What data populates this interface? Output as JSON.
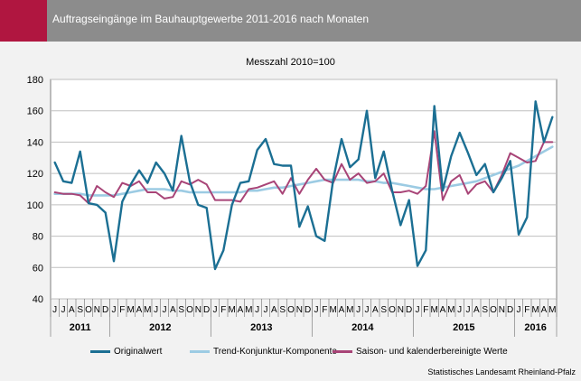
{
  "header": {
    "title": "Auftragseingänge im Bauhauptgewerbe 2011-2016 nach Monaten",
    "accent_color": "#b01640",
    "bar_color": "#8c8c8c"
  },
  "source": "Statistisches Landesamt Rheinland-Pfalz",
  "chart_data": {
    "type": "line",
    "title": "",
    "subtitle": "Messzahl 2010=100",
    "xlabel": "",
    "ylabel": "",
    "ylim": [
      40,
      180
    ],
    "yticks": [
      40,
      60,
      80,
      100,
      120,
      140,
      160,
      180
    ],
    "grid": true,
    "legend_position": "bottom",
    "month_labels": [
      "J",
      "J",
      "A",
      "S",
      "O",
      "N",
      "D",
      "J",
      "F",
      "M",
      "A",
      "M",
      "J",
      "J",
      "A",
      "S",
      "O",
      "N",
      "D",
      "J",
      "F",
      "M",
      "A",
      "M",
      "J",
      "J",
      "A",
      "S",
      "O",
      "N",
      "D",
      "J",
      "F",
      "M",
      "A",
      "M",
      "J",
      "J",
      "A",
      "S",
      "O",
      "N",
      "D",
      "J",
      "F",
      "M",
      "A",
      "M",
      "J",
      "J",
      "A",
      "S",
      "O",
      "N",
      "D",
      "J",
      "F",
      "M",
      "A",
      "M"
    ],
    "years": [
      {
        "label": "2011",
        "months": 7
      },
      {
        "label": "2012",
        "months": 12
      },
      {
        "label": "2013",
        "months": 12
      },
      {
        "label": "2014",
        "months": 12
      },
      {
        "label": "2015",
        "months": 12
      },
      {
        "label": "2016",
        "months": 5
      }
    ],
    "series": [
      {
        "name": "Originalwert",
        "color": "#1b6f93",
        "values": [
          127,
          115,
          114,
          134,
          101,
          100,
          95,
          64,
          102,
          113,
          122,
          114,
          127,
          120,
          109,
          144,
          115,
          100,
          98,
          59,
          71,
          100,
          114,
          115,
          135,
          142,
          126,
          125,
          125,
          86,
          99,
          80,
          77,
          116,
          142,
          124,
          129,
          160,
          117,
          134,
          109,
          87,
          103,
          61,
          71,
          163,
          109,
          131,
          146,
          133,
          119,
          126,
          108,
          117,
          128,
          81,
          92,
          166,
          140,
          156
        ]
      },
      {
        "name": "Trend-Konjunktur-Komponente",
        "color": "#9ccbe3",
        "values": [
          107,
          107,
          107,
          107,
          106,
          106,
          106,
          106,
          107,
          108,
          109,
          110,
          110,
          110,
          109,
          109,
          108,
          108,
          108,
          108,
          108,
          108,
          108,
          109,
          109,
          110,
          111,
          111,
          112,
          113,
          114,
          115,
          116,
          116,
          116,
          116,
          116,
          115,
          115,
          114,
          114,
          113,
          112,
          111,
          110,
          110,
          111,
          112,
          113,
          114,
          115,
          117,
          119,
          121,
          123,
          125,
          128,
          131,
          134,
          137
        ]
      },
      {
        "name": "Saison- und kalenderbereinigte Werte",
        "color": "#a84477",
        "values": [
          108,
          107,
          107,
          106,
          101,
          112,
          108,
          105,
          114,
          112,
          115,
          108,
          108,
          104,
          105,
          115,
          113,
          116,
          113,
          103,
          103,
          103,
          102,
          110,
          111,
          113,
          115,
          107,
          117,
          107,
          116,
          123,
          116,
          114,
          126,
          116,
          120,
          114,
          115,
          120,
          108,
          108,
          109,
          107,
          112,
          147,
          103,
          115,
          119,
          107,
          113,
          115,
          108,
          119,
          133,
          130,
          127,
          128,
          140,
          140
        ]
      }
    ]
  }
}
